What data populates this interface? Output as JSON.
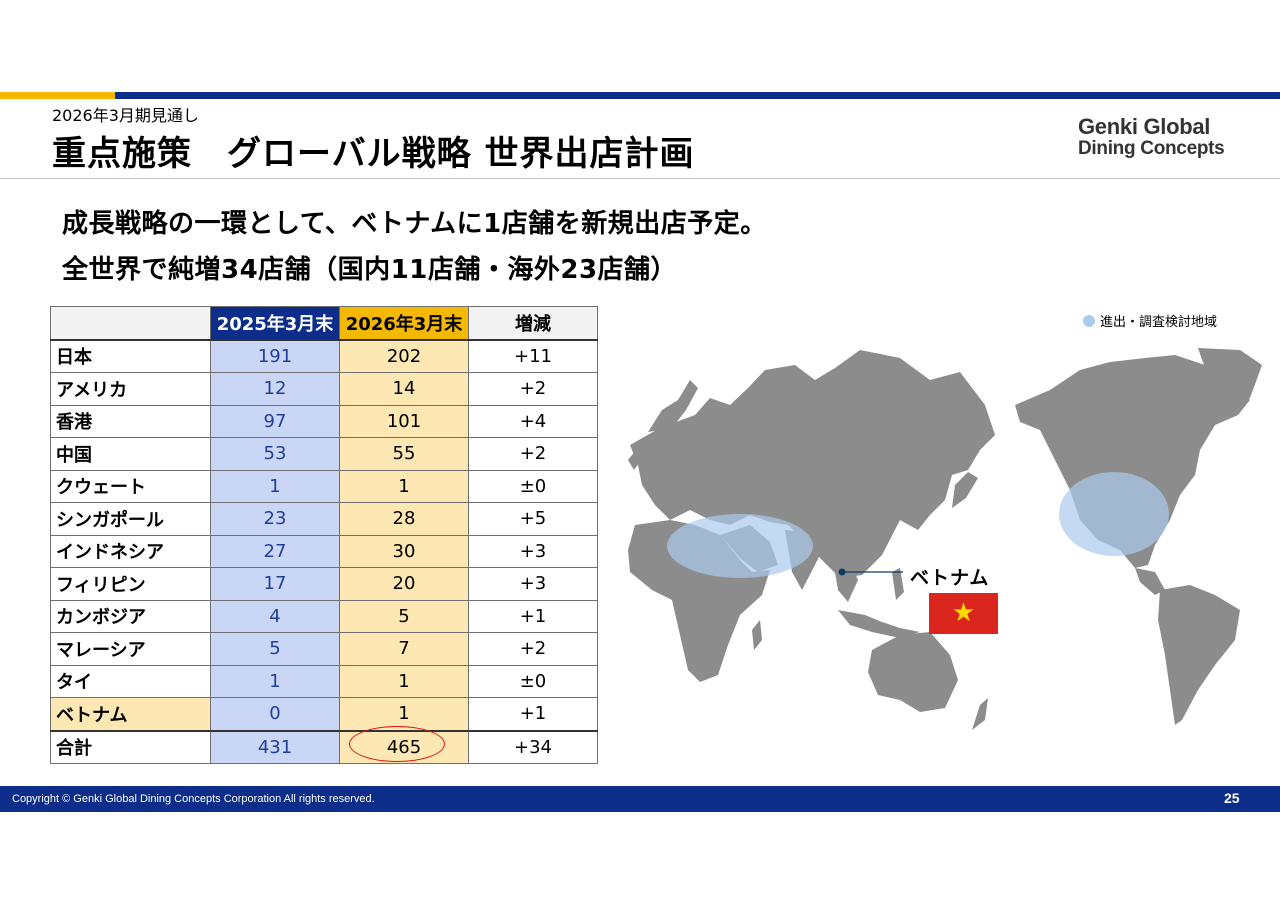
{
  "header": {
    "subtitle": "2026年3月期見通し",
    "title": "重点施策　グローバル戦略 世界出店計画",
    "logo_line1": "Genki Global",
    "logo_line2": "Dining Concepts"
  },
  "headline": {
    "line1": "成長戦略の一環として、ベトナムに1店舗を新規出店予定。",
    "line2": "全世界で純増34店舗（国内11店舗・海外23店舗）"
  },
  "table": {
    "headers": [
      "",
      "2025年3月末",
      "2026年3月末",
      "増減"
    ],
    "rows": [
      {
        "name": "日本",
        "v2025": "191",
        "v2026": "202",
        "diff": "+11"
      },
      {
        "name": "アメリカ",
        "v2025": "12",
        "v2026": "14",
        "diff": "+2"
      },
      {
        "name": "香港",
        "v2025": "97",
        "v2026": "101",
        "diff": "+4"
      },
      {
        "name": "中国",
        "v2025": "53",
        "v2026": "55",
        "diff": "+2"
      },
      {
        "name": "クウェート",
        "v2025": "1",
        "v2026": "1",
        "diff": "±0"
      },
      {
        "name": "シンガポール",
        "v2025": "23",
        "v2026": "28",
        "diff": "+5"
      },
      {
        "name": "インドネシア",
        "v2025": "27",
        "v2026": "30",
        "diff": "+3"
      },
      {
        "name": "フィリピン",
        "v2025": "17",
        "v2026": "20",
        "diff": "+3"
      },
      {
        "name": "カンボジア",
        "v2025": "4",
        "v2026": "5",
        "diff": "+1"
      },
      {
        "name": "マレーシア",
        "v2025": "5",
        "v2026": "7",
        "diff": "+2"
      },
      {
        "name": "タイ",
        "v2025": "1",
        "v2026": "1",
        "diff": "±0"
      },
      {
        "name": "ベトナム",
        "v2025": "0",
        "v2026": "1",
        "diff": "+1"
      }
    ],
    "total": {
      "name": "合計",
      "v2025": "431",
      "v2026": "465",
      "diff": "+34"
    }
  },
  "map": {
    "legend": "進出・調査検討地域",
    "vietnam_label": "ベトナム",
    "flag_star": "★"
  },
  "footer": {
    "copyright": "Copyright © Genki Global Dining Concepts Corporation All rights reserved.",
    "page": "25"
  },
  "colors": {
    "navy": "#0c2e8a",
    "gold": "#f5b800",
    "blue_cell": "#c9d6f5",
    "yellow_cell": "#fde7b2",
    "region_highlight": "#a9cbed",
    "land": "#8c8c8c",
    "flag_red": "#da251d",
    "flag_star": "#ffd800"
  }
}
